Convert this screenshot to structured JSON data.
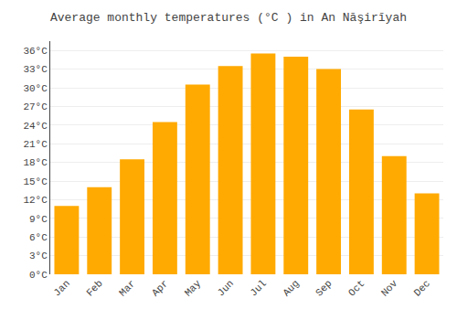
{
  "chart_data": {
    "type": "bar",
    "title": "Average monthly temperatures (°C ) in An Nāşirīyah",
    "categories": [
      "Jan",
      "Feb",
      "Mar",
      "Apr",
      "May",
      "Jun",
      "Jul",
      "Aug",
      "Sep",
      "Oct",
      "Nov",
      "Dec"
    ],
    "values": [
      11.0,
      14.0,
      18.5,
      24.5,
      30.5,
      33.5,
      35.5,
      35.0,
      33.0,
      26.5,
      19.0,
      13.0
    ],
    "color": "#FFAA00",
    "ylim": [
      0,
      37.5
    ],
    "yticks": [
      {
        "value": 0,
        "label": "0°C"
      },
      {
        "value": 3,
        "label": "3°C"
      },
      {
        "value": 6,
        "label": "6°C"
      },
      {
        "value": 9,
        "label": "9°C"
      },
      {
        "value": 12,
        "label": "12°C"
      },
      {
        "value": 15,
        "label": "15°C"
      },
      {
        "value": 18,
        "label": "18°C"
      },
      {
        "value": 21,
        "label": "21°C"
      },
      {
        "value": 24,
        "label": "24°C"
      },
      {
        "value": 27,
        "label": "27°C"
      },
      {
        "value": 30,
        "label": "30°C"
      },
      {
        "value": 33,
        "label": "33°C"
      },
      {
        "value": 36,
        "label": "36°C"
      }
    ],
    "grid": true
  }
}
